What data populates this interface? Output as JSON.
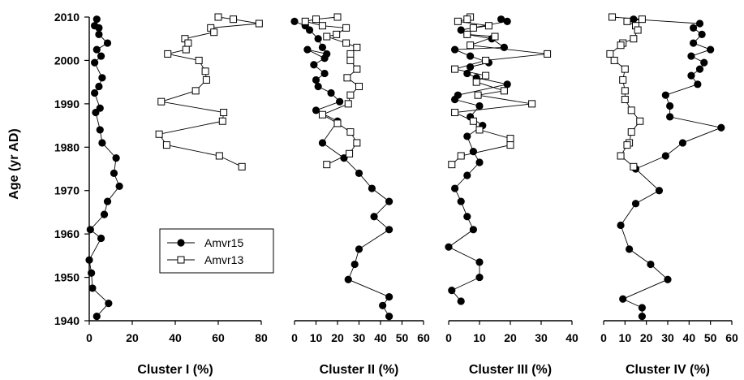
{
  "chart_data": {
    "type": "scatter",
    "ylabel": "Age (yr AD)",
    "ylim": [
      1940,
      2010
    ],
    "yticks": [
      1940,
      1950,
      1960,
      1970,
      1980,
      1990,
      2000,
      2010
    ],
    "legend": {
      "placement": "inside panel 1, lower right",
      "entries": [
        {
          "name": "Amvr15",
          "marker": "filled-circle",
          "color": "#000000"
        },
        {
          "name": "Amvr13",
          "marker": "open-square",
          "color": "#000000"
        }
      ]
    },
    "panels": [
      {
        "xlabel": "Cluster I (%)",
        "xlim": [
          0,
          80
        ],
        "xticks": [
          0,
          20,
          40,
          60,
          80
        ],
        "series": [
          {
            "name": "Amvr15",
            "x": [
              3.5,
              2.5,
              4.5,
              4.5,
              8.5,
              3.5,
              5.5,
              2.5,
              6,
              4.5,
              2.5,
              5,
              3,
              5,
              6,
              12.5,
              11.5,
              14,
              8.5,
              7,
              0.5,
              5.5,
              0,
              1,
              1.5,
              9,
              3.5
            ],
            "y": [
              2009.5,
              2008,
              2007.5,
              2006,
              2004,
              2002.5,
              2001,
              1999.5,
              1996,
              1994,
              1992.5,
              1989,
              1988,
              1984,
              1981,
              1977.5,
              1974,
              1971,
              1967.5,
              1964.5,
              1961,
              1959,
              1954,
              1951,
              1947.5,
              1944,
              1941
            ]
          },
          {
            "name": "Amvr13",
            "x": [
              60,
              67,
              79,
              56.5,
              58,
              44.5,
              46,
              45,
              36.5,
              51,
              54,
              54.5,
              49.5,
              33.5,
              62.5,
              62,
              32.5,
              36,
              60.5,
              71
            ],
            "y": [
              2010,
              2009.5,
              2008.5,
              2007.5,
              2006.5,
              2005,
              2004,
              2002.5,
              2001.5,
              2000,
              1997.5,
              1995.5,
              1993,
              1990.5,
              1988,
              1986,
              1983,
              1980.5,
              1978,
              1975.5
            ]
          }
        ]
      },
      {
        "xlabel": "Cluster II (%)",
        "xlim": [
          0,
          60
        ],
        "xticks": [
          0,
          10,
          20,
          30,
          40,
          50,
          60
        ],
        "series": [
          {
            "name": "Amvr15",
            "x": [
              0,
              5,
              7,
              11,
              13,
              15,
              6,
              14,
              9,
              14,
              10,
              11,
              17,
              21,
              10,
              20,
              13,
              23,
              30,
              36,
              44,
              37,
              44,
              30,
              28,
              25,
              44,
              41,
              44
            ],
            "y": [
              2009,
              2008,
              2007,
              2005,
              2003,
              2001.5,
              2002.5,
              2000.5,
              1999,
              1997,
              1995.5,
              1994,
              1992.5,
              1990.5,
              1988.5,
              1986,
              1981,
              1977.5,
              1974,
              1970.5,
              1967.5,
              1964,
              1961,
              1956.5,
              1953,
              1949.5,
              1945.5,
              1943.5,
              1941
            ]
          },
          {
            "name": "Amvr13",
            "x": [
              20,
              10,
              5,
              13,
              24,
              19.5,
              15,
              24,
              29,
              26,
              26,
              29,
              24.5,
              30,
              26,
              25,
              13,
              20,
              26,
              29,
              25.5,
              15
            ],
            "y": [
              2010,
              2009.5,
              2009,
              2008,
              2007.5,
              2006,
              2005.5,
              2004,
              2003,
              2001.5,
              2000,
              1998,
              1996,
              1994,
              1992,
              1990,
              1987.5,
              1985.5,
              1983.5,
              1981,
              1978.5,
              1976
            ]
          }
        ]
      },
      {
        "xlabel": "Cluster III (%)",
        "xlim": [
          0,
          40
        ],
        "xticks": [
          0,
          10,
          20,
          30,
          40
        ],
        "series": [
          {
            "name": "Amvr15",
            "x": [
              17,
              19,
              4,
              6,
              14,
              18,
              2,
              7,
              13,
              7,
              6,
              9,
              19,
              3,
              2,
              10,
              7,
              11,
              6,
              8,
              10,
              6,
              2,
              4,
              6,
              8,
              0,
              10,
              10,
              1,
              4
            ],
            "y": [
              2009.5,
              2009,
              2007,
              2006,
              2005,
              2003,
              2002.5,
              2001,
              1999.5,
              1998.5,
              1997,
              1996,
              1994.5,
              1992,
              1991,
              1989.5,
              1987,
              1985,
              1982.5,
              1979,
              1976.5,
              1973.5,
              1970.5,
              1967.5,
              1964,
              1961,
              1957,
              1953.5,
              1950,
              1947,
              1944.5
            ]
          },
          {
            "name": "Amvr13",
            "x": [
              7,
              6,
              3,
              13,
              8,
              6,
              15,
              7,
              32,
              12,
              2,
              12,
              9,
              18,
              9.5,
              27,
              2,
              8,
              10,
              20,
              20,
              4,
              1
            ],
            "y": [
              2010,
              2009.5,
              2009,
              2008,
              2007.5,
              2006,
              2005.5,
              2003.5,
              2001.5,
              2000,
              1998,
              1996.5,
              1995,
              1993,
              1992,
              1990,
              1988,
              1986,
              1984,
              1982,
              1980.5,
              1978,
              1976
            ]
          }
        ]
      },
      {
        "xlabel": "Cluster IV (%)",
        "xlim": [
          0,
          60
        ],
        "xticks": [
          0,
          10,
          20,
          30,
          40,
          50,
          60
        ],
        "series": [
          {
            "name": "Amvr15",
            "x": [
              14,
              45,
              42,
              46,
              42,
              50,
              41,
              47,
              45,
              41,
              44,
              29,
              31,
              31,
              55,
              37,
              29,
              15,
              26,
              15,
              8,
              12,
              22,
              30,
              9,
              18,
              18
            ],
            "y": [
              2009.5,
              2008.5,
              2007.5,
              2006,
              2004,
              2002.5,
              2001,
              1999.5,
              1998,
              1996.5,
              1994.5,
              1992,
              1989.5,
              1987,
              1984.5,
              1981,
              1978,
              1975,
              1970,
              1967,
              1962,
              1956.5,
              1953,
              1949.5,
              1945,
              1943,
              1941
            ]
          },
          {
            "name": "Amvr13",
            "x": [
              4,
              18,
              11,
              15,
              16,
              14,
              9,
              8,
              3,
              5,
              10,
              9,
              10,
              10,
              13,
              17,
              13,
              12,
              11,
              8,
              14
            ],
            "y": [
              2010,
              2009.5,
              2009,
              2008,
              2007,
              2005,
              2004,
              2003.5,
              2001.5,
              2000,
              1998,
              1995.5,
              1993,
              1991,
              1988.5,
              1986,
              1983.5,
              1981,
              1980.5,
              1978,
              1975.5
            ]
          }
        ]
      }
    ]
  }
}
